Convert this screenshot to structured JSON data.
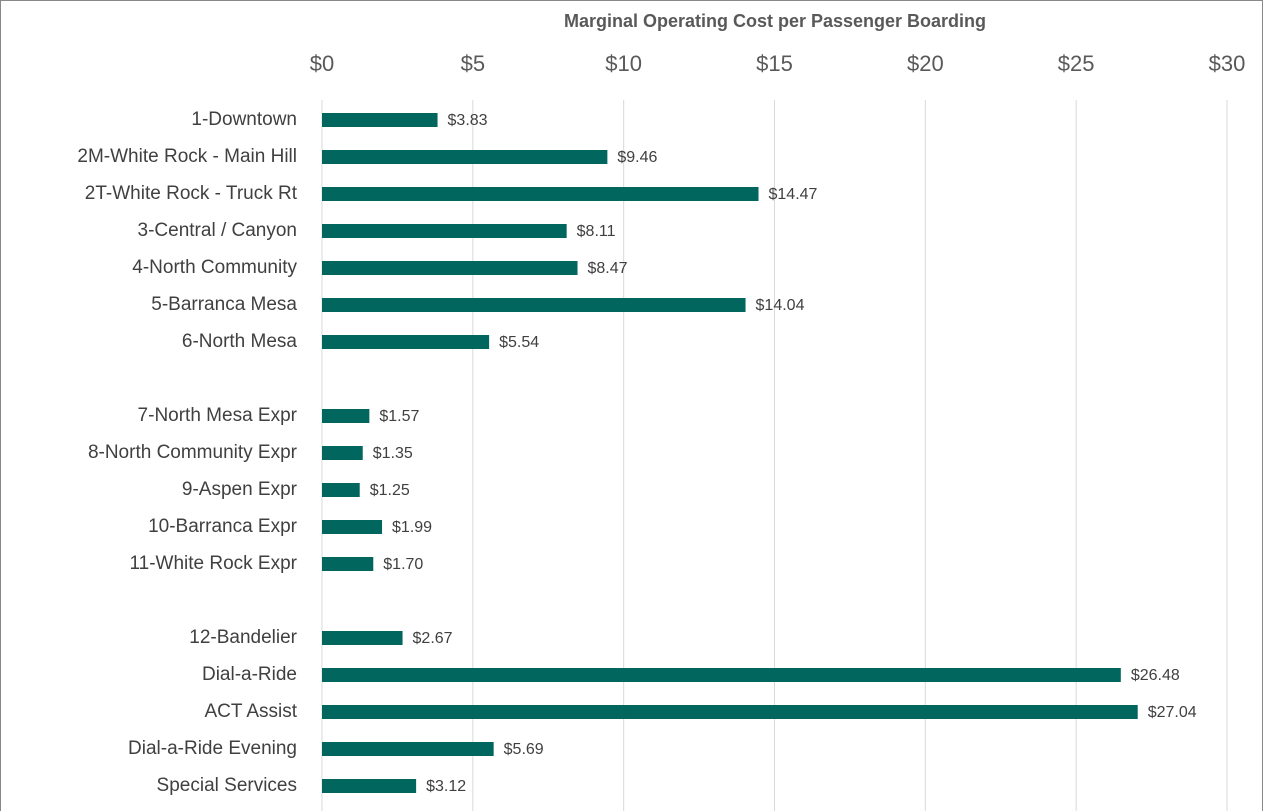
{
  "chart_data": {
    "type": "barh",
    "title": "Marginal Operating Cost per Passenger Boarding",
    "categories": [
      "1-Downtown",
      "2M-White Rock - Main Hill",
      "2T-White Rock - Truck Rt",
      "3-Central / Canyon",
      "4-North Community",
      "5-Barranca Mesa",
      "6-North Mesa",
      null,
      "7-North Mesa Expr",
      "8-North Community Expr",
      "9-Aspen Expr",
      "10-Barranca Expr",
      "11-White Rock Expr",
      null,
      "12-Bandelier",
      "Dial-a-Ride",
      "ACT Assist",
      "Dial-a-Ride Evening",
      "Special Services"
    ],
    "values": [
      3.83,
      9.46,
      14.47,
      8.11,
      8.47,
      14.04,
      5.54,
      null,
      1.57,
      1.35,
      1.25,
      1.99,
      1.7,
      null,
      2.67,
      26.48,
      27.04,
      5.69,
      3.12
    ],
    "value_labels": [
      "$3.83",
      "$9.46",
      "$14.47",
      "$8.11",
      "$8.47",
      "$14.04",
      "$5.54",
      null,
      "$1.57",
      "$1.35",
      "$1.25",
      "$1.99",
      "$1.70",
      null,
      "$2.67",
      "$26.48",
      "$27.04",
      "$5.69",
      "$3.12"
    ],
    "color": "#00665e",
    "xlim": [
      0,
      30
    ],
    "xticks": [
      {
        "value": 0,
        "label": "$0"
      },
      {
        "value": 5,
        "label": "$5"
      },
      {
        "value": 10,
        "label": "$10"
      },
      {
        "value": 15,
        "label": "$15"
      },
      {
        "value": 20,
        "label": "$20"
      },
      {
        "value": 25,
        "label": "$25"
      },
      {
        "value": 30,
        "label": "$30"
      }
    ],
    "grid": true
  }
}
